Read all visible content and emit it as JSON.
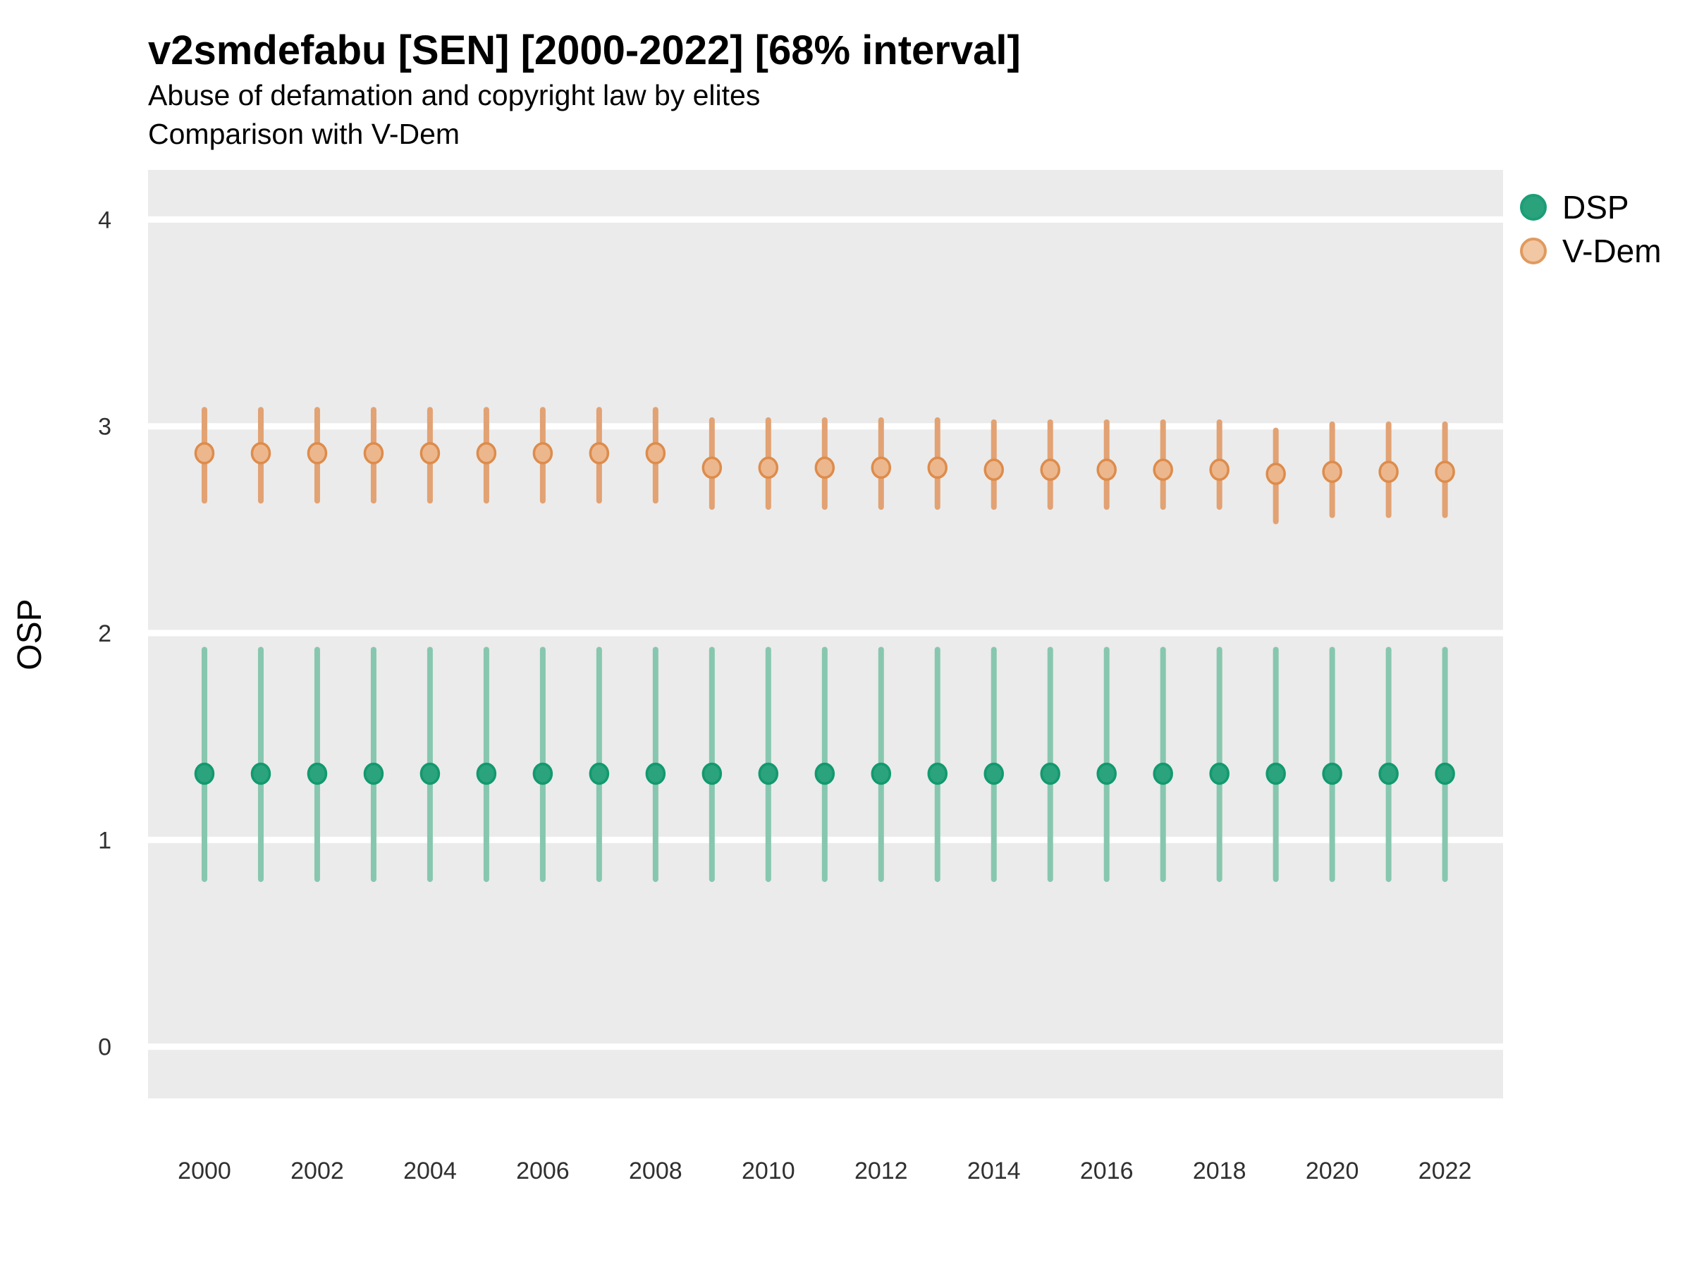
{
  "header": {
    "title": "v2smdefabu [SEN] [2000-2022] [68% interval]",
    "subtitle1": "Abuse of defamation and copyright law by elites",
    "subtitle2": "Comparison with V-Dem"
  },
  "legend": {
    "items": [
      {
        "label": "DSP",
        "swatch_fill": "#2AA37C",
        "swatch_stroke": "#1B9E77"
      },
      {
        "label": "V-Dem",
        "swatch_fill": "#F2C7A3",
        "swatch_stroke": "#E09A5F"
      }
    ]
  },
  "colors": {
    "panel_background": "#EBEBEB",
    "gridline": "#FFFFFF",
    "axis_text": "#303030",
    "axis_title": "#000000"
  },
  "chart_data": {
    "type": "scatter",
    "title": "v2smdefabu [SEN] [2000-2022] [68% interval]",
    "subtitle": "Abuse of defamation and copyright law by elites — Comparison with V-Dem",
    "xlabel": "",
    "ylabel": "OSP",
    "legend_position": "right-top",
    "grid": "horizontal-major-only",
    "interval_note": "68% interval error bars",
    "xlim": [
      1999.0,
      2023.03
    ],
    "ylim": [
      -0.25,
      4.24
    ],
    "yticks": [
      0,
      1,
      2,
      3,
      4
    ],
    "xticks": [
      2000,
      2002,
      2004,
      2006,
      2008,
      2010,
      2012,
      2014,
      2016,
      2018,
      2020,
      2022
    ],
    "x": [
      2000,
      2001,
      2002,
      2003,
      2004,
      2005,
      2006,
      2007,
      2008,
      2009,
      2010,
      2011,
      2012,
      2013,
      2014,
      2015,
      2016,
      2017,
      2018,
      2019,
      2020,
      2021,
      2022
    ],
    "series": [
      {
        "name": "DSP",
        "bar_color": "#87C7AF",
        "point_fill": "#2BA37C",
        "point_stroke": "#12996F",
        "values": [
          1.32,
          1.32,
          1.32,
          1.32,
          1.32,
          1.32,
          1.32,
          1.32,
          1.32,
          1.32,
          1.32,
          1.32,
          1.32,
          1.32,
          1.32,
          1.32,
          1.32,
          1.32,
          1.32,
          1.32,
          1.32,
          1.32,
          1.32
        ],
        "lower": [
          0.81,
          0.81,
          0.81,
          0.81,
          0.81,
          0.81,
          0.81,
          0.81,
          0.81,
          0.81,
          0.81,
          0.81,
          0.81,
          0.81,
          0.81,
          0.81,
          0.81,
          0.81,
          0.81,
          0.81,
          0.81,
          0.81,
          0.81
        ],
        "upper": [
          1.92,
          1.92,
          1.92,
          1.92,
          1.92,
          1.92,
          1.92,
          1.92,
          1.92,
          1.92,
          1.92,
          1.92,
          1.92,
          1.92,
          1.92,
          1.92,
          1.92,
          1.92,
          1.92,
          1.92,
          1.92,
          1.92,
          1.92
        ]
      },
      {
        "name": "V-Dem",
        "bar_color": "#E2A273",
        "point_fill": "#EDB78D",
        "point_stroke": "#DD8C4C",
        "values": [
          2.87,
          2.87,
          2.87,
          2.87,
          2.87,
          2.87,
          2.87,
          2.87,
          2.87,
          2.8,
          2.8,
          2.8,
          2.8,
          2.8,
          2.79,
          2.79,
          2.79,
          2.79,
          2.79,
          2.77,
          2.78,
          2.78,
          2.78
        ],
        "lower": [
          2.64,
          2.64,
          2.64,
          2.64,
          2.64,
          2.64,
          2.64,
          2.64,
          2.64,
          2.61,
          2.61,
          2.61,
          2.61,
          2.61,
          2.61,
          2.61,
          2.61,
          2.61,
          2.61,
          2.54,
          2.57,
          2.57,
          2.57
        ],
        "upper": [
          3.08,
          3.08,
          3.08,
          3.08,
          3.08,
          3.08,
          3.08,
          3.08,
          3.08,
          3.03,
          3.03,
          3.03,
          3.03,
          3.03,
          3.02,
          3.02,
          3.02,
          3.02,
          3.02,
          2.98,
          3.01,
          3.01,
          3.01
        ]
      }
    ]
  }
}
